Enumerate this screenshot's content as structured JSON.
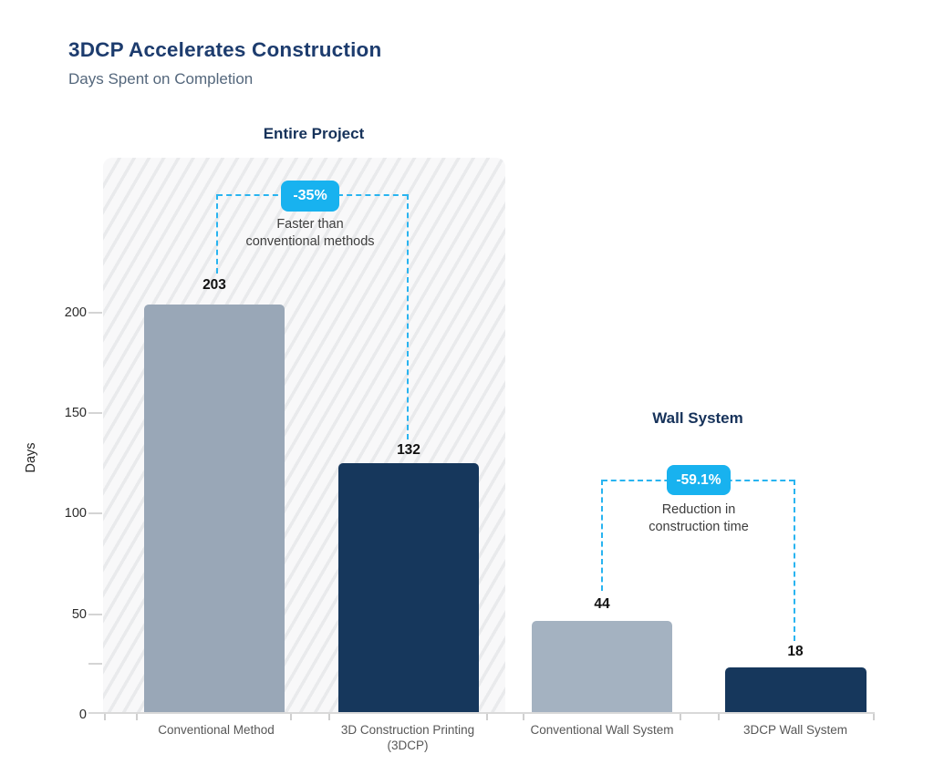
{
  "header": {
    "title": "3DCP Accelerates Construction",
    "subtitle": "Days Spent on Completion"
  },
  "chart_data": {
    "type": "bar",
    "title": "3DCP Accelerates Construction",
    "subtitle": "Days Spent on Completion",
    "ylabel": "Days",
    "ylim": [
      0,
      250
    ],
    "yticks": [
      0,
      50,
      100,
      150,
      200
    ],
    "yticks_minor": [
      25
    ],
    "ytick_labels": [
      "200",
      "150",
      "100",
      "50",
      "0"
    ],
    "grid": false,
    "groups": [
      {
        "label": "Entire Project",
        "hatched_background": true,
        "bars": [
          {
            "category": "Conventional Method",
            "category_lines": [
              "Conventional Method"
            ],
            "value": 203,
            "color": "#99a7b7"
          },
          {
            "category": "3D Construction Printing (3DCP)",
            "category_lines": [
              "3D Construction Printing",
              "(3DCP)"
            ],
            "value": 132,
            "color": "#16375c"
          }
        ],
        "annotation": {
          "badge": "-35%",
          "text": "Faster than conventional methods",
          "text_lines": [
            "Faster than",
            "conventional methods"
          ]
        }
      },
      {
        "label": "Wall System",
        "hatched_background": false,
        "bars": [
          {
            "category": "Conventional Wall System",
            "category_lines": [
              "Conventional Wall System"
            ],
            "value": 44,
            "color": "#a4b2c1"
          },
          {
            "category": "3DCP Wall System",
            "category_lines": [
              "3DCP Wall System"
            ],
            "value": 18,
            "color": "#16375c"
          }
        ],
        "annotation": {
          "badge": "-59.1%",
          "text": "Reduction in construction time",
          "text_lines": [
            "Reduction in",
            "construction time"
          ]
        }
      }
    ],
    "colors": {
      "accent": "#18b2ef",
      "bar_conventional": "#99a7b7",
      "bar_3dcp": "#16375c",
      "title": "#1d3c6e",
      "subtitle": "#54677c"
    }
  }
}
